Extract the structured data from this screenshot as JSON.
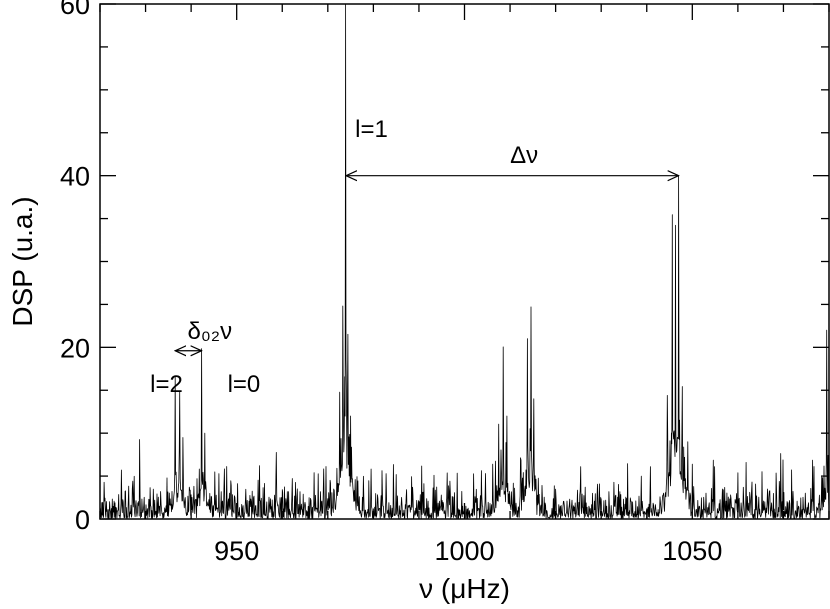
{
  "chart_data": {
    "type": "line",
    "title": "",
    "xlabel": "ν (μHz)",
    "ylabel": "DSP (u.a.)",
    "xlim": [
      920,
      1080
    ],
    "ylim": [
      0,
      60
    ],
    "xticks": [
      950,
      1000,
      1050
    ],
    "yticks": [
      0,
      20,
      40,
      60
    ],
    "grid": false,
    "series": [
      {
        "peaks": [
          {
            "x": 936.5,
            "y": 15.5
          },
          {
            "x": 937.5,
            "y": 14.5
          },
          {
            "x": 938.2,
            "y": 9.5
          },
          {
            "x": 942.3,
            "y": 19.5
          },
          {
            "x": 943.0,
            "y": 10.0
          },
          {
            "x": 972.6,
            "y": 11.0
          },
          {
            "x": 973.3,
            "y": 18.0
          },
          {
            "x": 973.9,
            "y": 60.0
          },
          {
            "x": 974.4,
            "y": 20.2
          },
          {
            "x": 975.0,
            "y": 12.0
          },
          {
            "x": 1007.5,
            "y": 11.0
          },
          {
            "x": 1008.5,
            "y": 19.5
          },
          {
            "x": 1009.3,
            "y": 12.0
          },
          {
            "x": 1013.8,
            "y": 18.0
          },
          {
            "x": 1014.6,
            "y": 23.3
          },
          {
            "x": 1015.2,
            "y": 14.0
          },
          {
            "x": 1044.5,
            "y": 12.0
          },
          {
            "x": 1045.6,
            "y": 32.0
          },
          {
            "x": 1046.3,
            "y": 30.0
          },
          {
            "x": 1047.0,
            "y": 39.5
          },
          {
            "x": 1047.8,
            "y": 15.0
          },
          {
            "x": 1049.0,
            "y": 9.0
          },
          {
            "x": 1079.5,
            "y": 22.0
          }
        ]
      }
    ],
    "annotations": [
      {
        "text": "l=2",
        "x": 931,
        "y": 14.8
      },
      {
        "text": "l=0",
        "x": 948,
        "y": 14.8
      },
      {
        "text": "l=1",
        "x": 976,
        "y": 44.5
      },
      {
        "text": "Δν",
        "x": 1010,
        "y": 41.5
      },
      {
        "text": "δ₀₂ν",
        "x": 939.2,
        "y": 21.0
      }
    ],
    "arrows": [
      {
        "name": "delta-nu",
        "x_from": 974,
        "x_to": 1047,
        "y": 40
      },
      {
        "name": "delta-02-nu",
        "x_from": 936.5,
        "x_to": 942.3,
        "y": 19.6
      }
    ]
  }
}
